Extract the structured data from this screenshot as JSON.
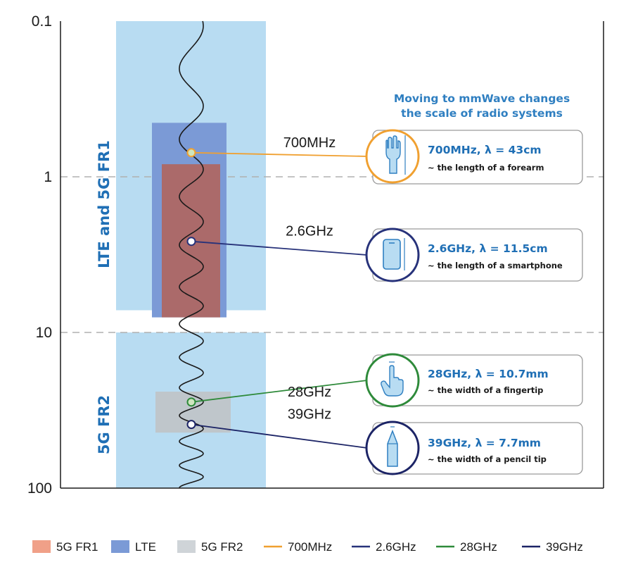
{
  "y_axis": {
    "scale": "log",
    "range": [
      0.1,
      100
    ],
    "ticks": [
      {
        "value": 0.1,
        "label": "0.1"
      },
      {
        "value": 1,
        "label": "1"
      },
      {
        "value": 10,
        "label": "10"
      },
      {
        "value": 100,
        "label": "100"
      }
    ],
    "dashed_gridlines_at": [
      1,
      10
    ]
  },
  "bands": [
    {
      "id": "lte-fr1",
      "label": "LTE and 5G FR1",
      "from": 0.1,
      "to": 7.2,
      "color": "#b8dcf2"
    },
    {
      "id": "fr2",
      "label": "5G FR2",
      "from": 10,
      "to": 100,
      "color": "#b8dcf2"
    }
  ],
  "ranges": [
    {
      "id": "lte",
      "from": 0.45,
      "to": 8,
      "color": "#7b9ad6"
    },
    {
      "id": "fr1",
      "from": 0.83,
      "to": 8,
      "color": "#ab6a6a"
    },
    {
      "id": "fr2",
      "from": 24,
      "to": 44,
      "color": "#bfc6cb"
    }
  ],
  "headline": [
    "Moving to mmWave changes",
    "the scale of radio systems"
  ],
  "frequencies": [
    {
      "id": "700mhz",
      "label": "700MHz",
      "value": 0.7,
      "color": "#f0a030",
      "icon": "raised-arm-icon",
      "title": "700MHz, λ = 43cm",
      "subtitle": "~ the length of a forearm"
    },
    {
      "id": "2-6ghz",
      "label": "2.6GHz",
      "value": 2.6,
      "color": "#27327a",
      "icon": "smartphone-icon",
      "title": "2.6GHz, λ = 11.5cm",
      "subtitle": "~ the length of a smartphone"
    },
    {
      "id": "28ghz",
      "label": "28GHz",
      "value": 28,
      "color": "#2e8a3a",
      "icon": "pointing-finger-icon",
      "title": "28GHz, λ = 10.7mm",
      "subtitle": "~ the width of a fingertip"
    },
    {
      "id": "39ghz",
      "label": "39GHz",
      "value": 39,
      "color": "#1c2466",
      "icon": "pencil-tip-icon",
      "title": "39GHz, λ = 7.7mm",
      "subtitle": "~ the width of a pencil tip"
    }
  ],
  "legend": [
    {
      "label": "5G FR1",
      "kind": "swatch",
      "color": "#f0a088"
    },
    {
      "label": "LTE",
      "kind": "swatch",
      "color": "#7b9ad6"
    },
    {
      "label": "5G FR2",
      "kind": "swatch",
      "color": "#cfd4d8"
    },
    {
      "label": "700MHz",
      "kind": "line",
      "color": "#f0a030"
    },
    {
      "label": "2.6GHz",
      "kind": "line",
      "color": "#27327a"
    },
    {
      "label": "28GHz",
      "kind": "line",
      "color": "#2e8a3a"
    },
    {
      "label": "39GHz",
      "kind": "line",
      "color": "#1c2466"
    }
  ]
}
